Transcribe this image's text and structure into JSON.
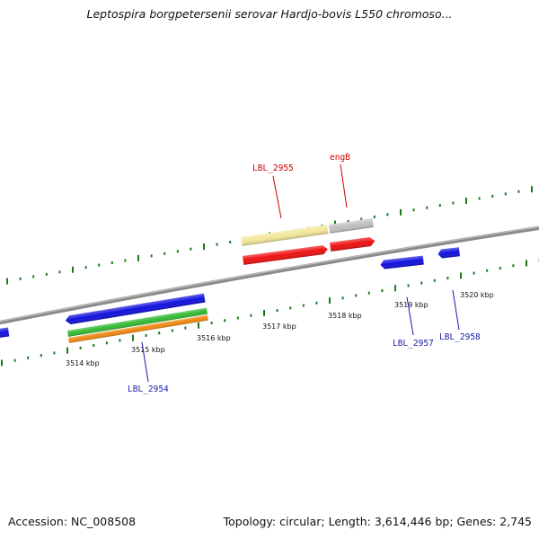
{
  "title": "Leptospira borgpetersenii serovar Hardjo-bovis L550 chromoso...",
  "footer": {
    "accession": "Accession: NC_008508",
    "summary": "Topology: circular; Length: 3,614,446 bp; Genes: 2,745"
  },
  "colors": {
    "backbone": "#8a8a8a",
    "tick": "#1a7a1a",
    "forward_gene_label": "#cc0000",
    "reverse_gene_label": "#1a1aaa"
  },
  "scale_ticks": [
    {
      "label": "3514 kbp"
    },
    {
      "label": "3515 kbp"
    },
    {
      "label": "3516 kbp"
    },
    {
      "label": "3517 kbp"
    },
    {
      "label": "3518 kbp"
    },
    {
      "label": "3519 kbp"
    },
    {
      "label": "3520 kbp"
    }
  ],
  "gene_labels": {
    "lbl_2955": "LBL_2955",
    "engB": "engB",
    "lbl_2954": "LBL_2954",
    "lbl_2957": "LBL_2957",
    "lbl_2958": "LBL_2958"
  },
  "features": [
    {
      "name": "lbl-2955-cds",
      "color": "#f2e69a"
    },
    {
      "name": "engB-cds",
      "color": "#c0c0c0"
    },
    {
      "name": "lbl-2955-gene",
      "color": "#ee1111"
    },
    {
      "name": "engB-gene",
      "color": "#ee1111"
    },
    {
      "name": "lbl-2954-gene",
      "color": "#1111dd"
    },
    {
      "name": "lbl-2954-cds-green",
      "color": "#33bb33"
    },
    {
      "name": "lbl-2954-cds-orange",
      "color": "#ee8811"
    },
    {
      "name": "lbl-2957-gene",
      "color": "#1111dd"
    },
    {
      "name": "lbl-2958-gene",
      "color": "#1111dd"
    },
    {
      "name": "left-edge-gene",
      "color": "#1111dd"
    }
  ]
}
